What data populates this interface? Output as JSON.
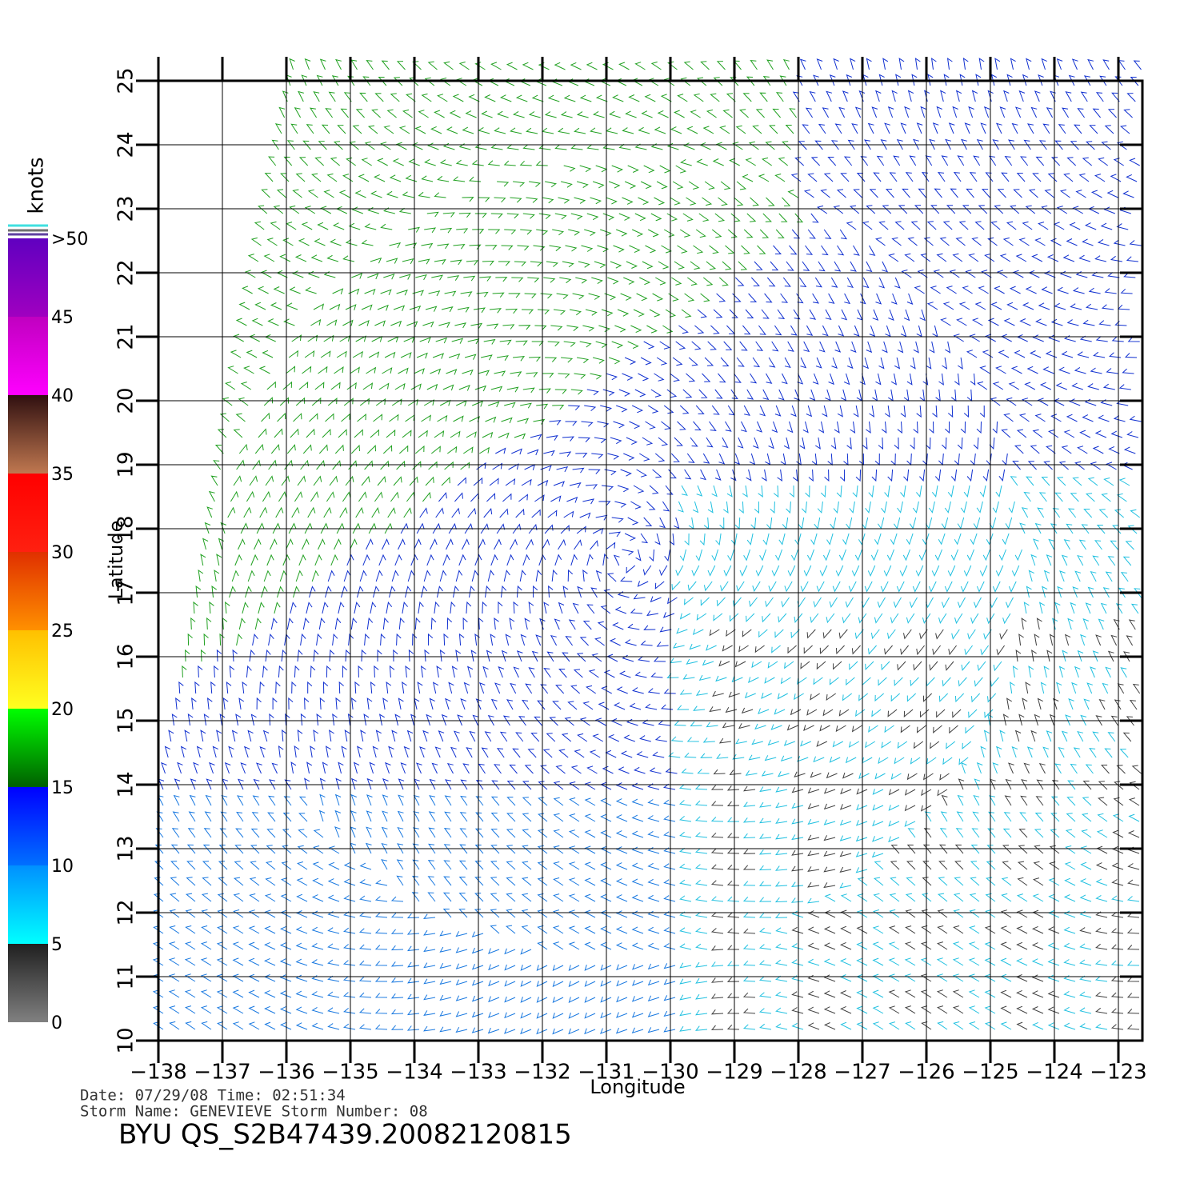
{
  "chart_data": {
    "type": "wind-map",
    "xlabel": "Longitude",
    "ylabel": "Latitude",
    "xlim": [
      -138,
      -122.625
    ],
    "ylim": [
      10,
      25
    ],
    "xticks": [
      {
        "value": -138,
        "label": "−138"
      },
      {
        "value": -137,
        "label": "−137"
      },
      {
        "value": -136,
        "label": "−136"
      },
      {
        "value": -135,
        "label": "−135"
      },
      {
        "value": -134,
        "label": "−134"
      },
      {
        "value": -133,
        "label": "−133"
      },
      {
        "value": -132,
        "label": "−132"
      },
      {
        "value": -131,
        "label": "−131"
      },
      {
        "value": -130,
        "label": "−130"
      },
      {
        "value": -129,
        "label": "−129"
      },
      {
        "value": -128,
        "label": "−128"
      },
      {
        "value": -127,
        "label": "−127"
      },
      {
        "value": -126,
        "label": "−126"
      },
      {
        "value": -125,
        "label": "−125"
      },
      {
        "value": -124,
        "label": "−124"
      },
      {
        "value": -123,
        "label": "−123"
      }
    ],
    "yticks": [
      10,
      11,
      12,
      13,
      14,
      15,
      16,
      17,
      18,
      19,
      20,
      21,
      22,
      23,
      24,
      25
    ],
    "grid": true,
    "colorbar": {
      "title": "knots",
      "ticks": [
        0,
        5,
        10,
        15,
        20,
        25,
        30,
        35,
        40,
        45,
        {
          "value": 50,
          "label": ">50"
        }
      ],
      "colors": [
        [
          "#808080",
          "#202020"
        ],
        [
          "#00ffff",
          "#0090ff"
        ],
        [
          "#0070ff",
          "#0000ff"
        ],
        [
          "#006000",
          "#00ff00"
        ],
        [
          "#ffff20",
          "#ffc000"
        ],
        [
          "#ff9000",
          "#e03000"
        ],
        [
          "#ff2010",
          "#ff0000"
        ],
        [
          "#c07850",
          "#301010"
        ],
        [
          "#ff00ff",
          "#c000c0"
        ],
        [
          "#a000c0",
          "#6000c0"
        ]
      ]
    },
    "info": [
      "Date: 07/29/08   Time: 02:51:34",
      "Storm  Name: GENEVIEVE   Storm  Number: 08"
    ],
    "title": "BYU  QS_S2B47439.20082120815"
  }
}
